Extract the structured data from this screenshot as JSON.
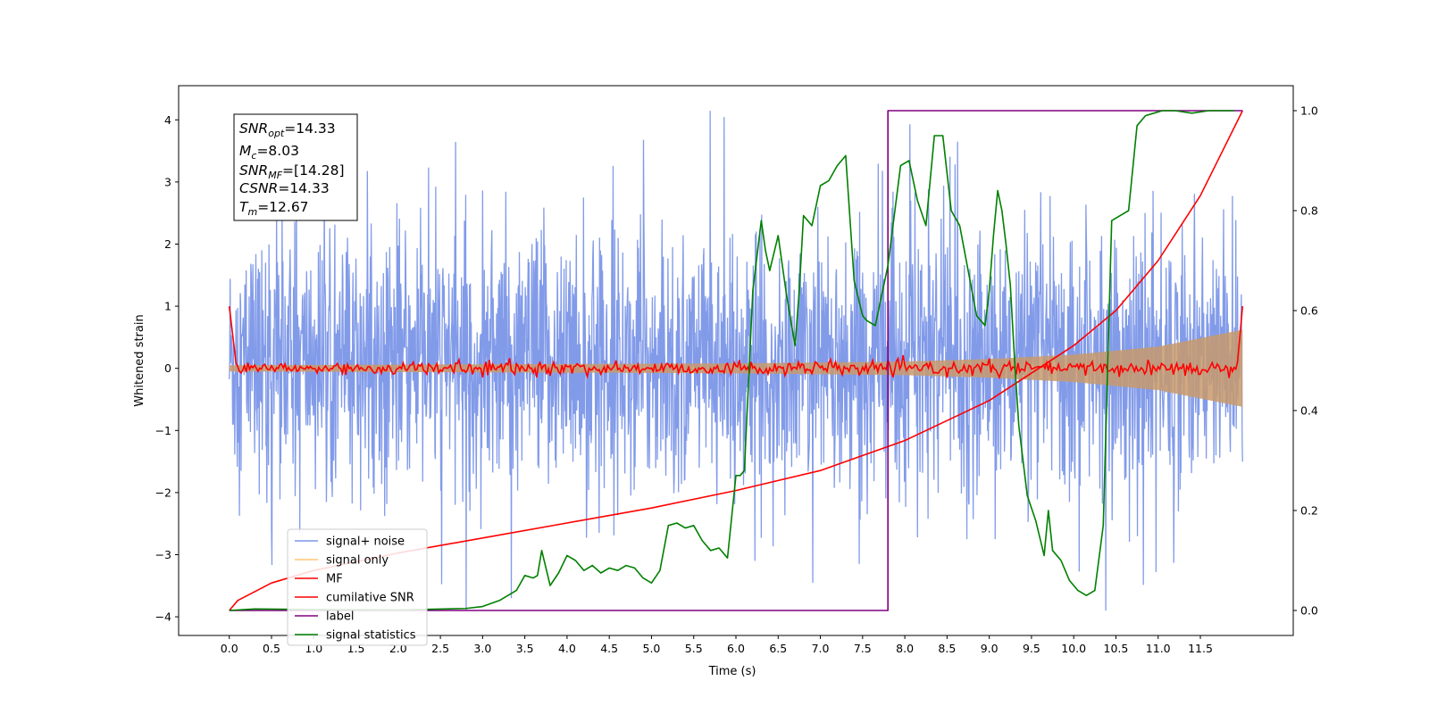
{
  "chart_data": {
    "type": "line",
    "xlabel": "Time (s)",
    "ylabel": "Whitened strain",
    "xlim": [
      -0.6,
      12.6
    ],
    "ylim_left": [
      -4.3,
      4.55
    ],
    "ylim_right": [
      -0.05,
      1.05
    ],
    "x_ticks": [
      "0.0",
      "0.5",
      "1.0",
      "1.5",
      "2.0",
      "2.5",
      "3.0",
      "3.5",
      "4.0",
      "4.5",
      "5.0",
      "5.5",
      "6.0",
      "6.5",
      "7.0",
      "7.5",
      "8.0",
      "8.5",
      "9.0",
      "9.5",
      "10.0",
      "10.5",
      "11.0",
      "11.5"
    ],
    "y_ticks_left": [
      "−4",
      "−3",
      "−2",
      "−1",
      "0",
      "1",
      "2",
      "3",
      "4"
    ],
    "y_ticks_right": [
      "0.0",
      "0.2",
      "0.4",
      "0.6",
      "0.8",
      "1.0"
    ],
    "grid": false,
    "legend_position": "lower-left",
    "info_box": {
      "snr_opt": {
        "base": "SNR",
        "sub": "opt",
        "value": "=14.33"
      },
      "mc": {
        "base": "M",
        "sub": "c",
        "value": "=8.03"
      },
      "snr_mf": {
        "base": "SNR",
        "sub": "MF",
        "value": "=[14.28]"
      },
      "csnr": {
        "base": "CSNR",
        "value": "=14.33"
      },
      "tm": {
        "base": "T",
        "sub": "m",
        "value": "=12.67"
      }
    },
    "series": [
      {
        "name": "signal+ noise",
        "color": "#7b96e8",
        "axis": "left",
        "kind": "noise",
        "approx_min": -3.9,
        "approx_max": 4.2,
        "typical_range": [
          -2.0,
          2.4
        ]
      },
      {
        "name": "signal only",
        "color": "#ffc870",
        "axis": "left",
        "kind": "chirp_envelope",
        "x": [
          0.0,
          6.0,
          8.0,
          9.0,
          10.0,
          11.0,
          12.0
        ],
        "amplitude": [
          0.05,
          0.08,
          0.11,
          0.15,
          0.22,
          0.35,
          0.62
        ]
      },
      {
        "name": "MF",
        "color": "#ff0000",
        "axis": "left",
        "kind": "noise_small",
        "x_range": [
          0.0,
          12.0
        ],
        "start_value": 1.0,
        "end_value": 1.0,
        "typical_range": [
          -0.15,
          0.15
        ]
      },
      {
        "name": "cumilative SNR",
        "color": "#ff0000",
        "axis": "right",
        "x": [
          0.0,
          0.1,
          0.5,
          1.0,
          2.0,
          3.0,
          4.0,
          5.0,
          6.0,
          7.0,
          8.0,
          9.0,
          10.0,
          10.5,
          11.0,
          11.5,
          12.0
        ],
        "values": [
          0.0,
          0.02,
          0.055,
          0.08,
          0.115,
          0.145,
          0.175,
          0.205,
          0.24,
          0.28,
          0.34,
          0.42,
          0.53,
          0.6,
          0.7,
          0.83,
          1.0
        ]
      },
      {
        "name": "label",
        "color": "#800080",
        "axis": "right",
        "x": [
          0.0,
          7.8,
          7.8,
          12.0
        ],
        "values": [
          0.0,
          0.0,
          1.0,
          1.0
        ]
      },
      {
        "name": "signal statistics",
        "color": "#008000",
        "axis": "right",
        "x": [
          0.0,
          0.3,
          1.0,
          2.0,
          2.8,
          3.0,
          3.2,
          3.4,
          3.5,
          3.6,
          3.65,
          3.7,
          3.8,
          3.9,
          4.0,
          4.1,
          4.2,
          4.3,
          4.4,
          4.5,
          4.6,
          4.7,
          4.8,
          4.9,
          5.0,
          5.1,
          5.2,
          5.3,
          5.4,
          5.5,
          5.6,
          5.7,
          5.8,
          5.9,
          6.0,
          6.05,
          6.1,
          6.2,
          6.3,
          6.35,
          6.4,
          6.5,
          6.55,
          6.6,
          6.7,
          6.75,
          6.8,
          6.9,
          7.0,
          7.1,
          7.2,
          7.3,
          7.4,
          7.5,
          7.55,
          7.65,
          7.8,
          7.95,
          8.05,
          8.15,
          8.25,
          8.35,
          8.45,
          8.55,
          8.65,
          8.75,
          8.85,
          8.95,
          9.0,
          9.05,
          9.1,
          9.15,
          9.2,
          9.25,
          9.3,
          9.35,
          9.45,
          9.55,
          9.65,
          9.7,
          9.75,
          9.85,
          9.95,
          10.05,
          10.15,
          10.25,
          10.35,
          10.45,
          10.55,
          10.65,
          10.75,
          10.85,
          10.95,
          11.05,
          11.2,
          11.4,
          11.6,
          11.8,
          11.9
        ],
        "values": [
          0.0,
          0.003,
          0.002,
          0.001,
          0.004,
          0.008,
          0.02,
          0.04,
          0.07,
          0.065,
          0.07,
          0.12,
          0.05,
          0.075,
          0.11,
          0.1,
          0.08,
          0.09,
          0.075,
          0.085,
          0.08,
          0.09,
          0.085,
          0.065,
          0.055,
          0.08,
          0.17,
          0.175,
          0.165,
          0.17,
          0.14,
          0.12,
          0.125,
          0.105,
          0.27,
          0.27,
          0.28,
          0.64,
          0.78,
          0.72,
          0.68,
          0.75,
          0.69,
          0.63,
          0.53,
          0.64,
          0.79,
          0.77,
          0.85,
          0.86,
          0.89,
          0.91,
          0.66,
          0.59,
          0.58,
          0.57,
          0.69,
          0.89,
          0.9,
          0.82,
          0.77,
          0.95,
          0.95,
          0.8,
          0.77,
          0.68,
          0.59,
          0.57,
          0.64,
          0.75,
          0.84,
          0.8,
          0.73,
          0.65,
          0.5,
          0.37,
          0.23,
          0.18,
          0.11,
          0.2,
          0.12,
          0.1,
          0.06,
          0.04,
          0.03,
          0.04,
          0.17,
          0.78,
          0.79,
          0.8,
          0.97,
          0.99,
          0.995,
          1.0,
          1.0,
          0.995,
          1.0,
          1.0,
          1.0
        ]
      }
    ]
  }
}
